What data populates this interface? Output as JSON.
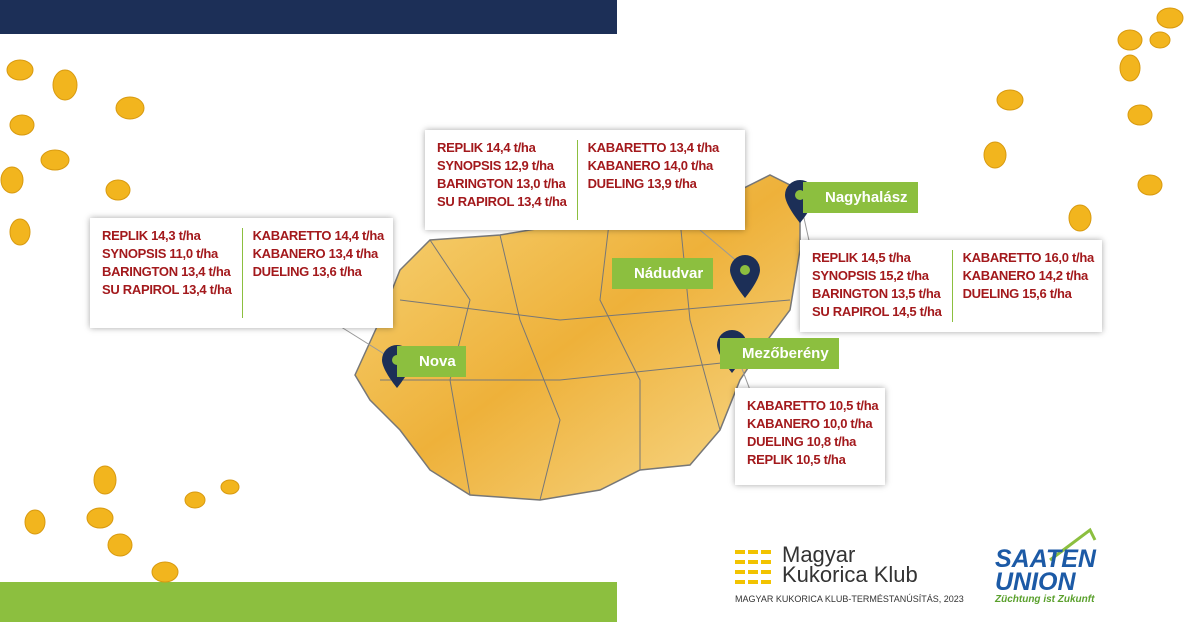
{
  "locations": [
    {
      "name": "Nova",
      "left": [
        "REPLIK 14,3 t/ha",
        "SYNOPSIS 11,0 t/ha",
        "BARINGTON 13,4 t/ha",
        "SU RAPIROL 13,4 t/ha"
      ],
      "right": [
        "KABARETTO 14,4 t/ha",
        "KABANERO 13,4 t/ha",
        "DUELING 13,6 t/ha"
      ]
    },
    {
      "name": "Nádudvar",
      "left": [
        "REPLIK 14,4 t/ha",
        "SYNOPSIS 12,9 t/ha",
        "BARINGTON 13,0 t/ha",
        "SU RAPIROL 13,4 t/ha"
      ],
      "right": [
        "KABARETTO 13,4 t/ha",
        "KABANERO 14,0 t/ha",
        "DUELING 13,9 t/ha"
      ]
    },
    {
      "name": "Nagyhalász",
      "left": [
        "REPLIK 14,5 t/ha",
        "SYNOPSIS 15,2 t/ha",
        "BARINGTON 13,5 t/ha",
        "SU RAPIROL 14,5 t/ha"
      ],
      "right": [
        "KABARETTO 16,0 t/ha",
        "KABANERO 14,2 t/ha",
        "DUELING 15,6 t/ha"
      ]
    },
    {
      "name": "Mezőberény",
      "left": [
        "KABARETTO 10,5 t/ha",
        "KABANERO 10,0 t/ha",
        "DUELING 10,8 t/ha",
        "REPLIK 10,5 t/ha"
      ]
    }
  ],
  "logos": {
    "mkk_line1": "Magyar",
    "mkk_line2": "Kukorica Klub",
    "mkk_caption": "MAGYAR KUKORICA KLUB-TERMÉSTANÚSÍTÁS, 2023",
    "saaten_line1": "SAATEN",
    "saaten_line2": "UNION",
    "saaten_slogan": "Züchtung ist Zukunft"
  }
}
